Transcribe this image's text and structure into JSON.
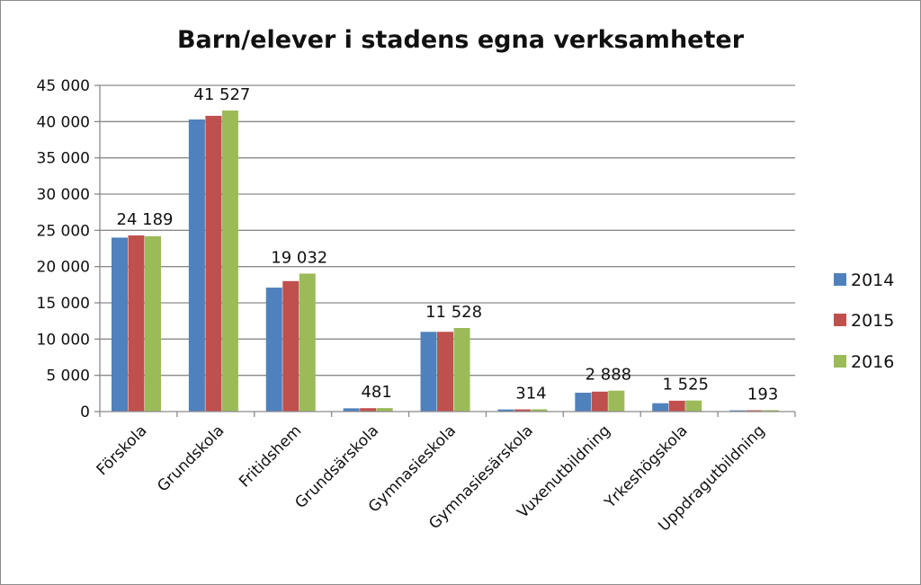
{
  "chart_data": {
    "type": "bar",
    "title": "Barn/elever i stadens egna verksamheter",
    "xlabel": "",
    "ylabel": "",
    "ylim": [
      0,
      45000
    ],
    "ytick_values": [
      0,
      5000,
      10000,
      15000,
      20000,
      25000,
      30000,
      35000,
      40000,
      45000
    ],
    "ytick_labels": [
      "0",
      "5 000",
      "10 000",
      "15 000",
      "20 000",
      "25 000",
      "30 000",
      "35 000",
      "40 000",
      "45 000"
    ],
    "grid": true,
    "legend_position": "right",
    "categories": [
      "Förskola",
      "Grundskola",
      "Fritidshem",
      "Grundsärskola",
      "Gymnasieskola",
      "Gymnasiesärskola",
      "Vuxenutbildning",
      "Yrkeshögskola",
      "Uppdragutbildning"
    ],
    "series": [
      {
        "name": "2014",
        "color": "#4f81bd",
        "values": [
          24000,
          40300,
          17100,
          450,
          11000,
          290,
          2600,
          1150,
          170
        ]
      },
      {
        "name": "2015",
        "color": "#c0504d",
        "values": [
          24300,
          40800,
          18000,
          470,
          11000,
          300,
          2750,
          1500,
          180
        ]
      },
      {
        "name": "2016",
        "color": "#9bbb59",
        "values": [
          24189,
          41527,
          19032,
          481,
          11528,
          314,
          2888,
          1525,
          193
        ]
      }
    ],
    "data_labels": [
      "24 189",
      "41 527",
      "19 032",
      "481",
      "11 528",
      "314",
      "2 888",
      "1 525",
      "193"
    ]
  }
}
